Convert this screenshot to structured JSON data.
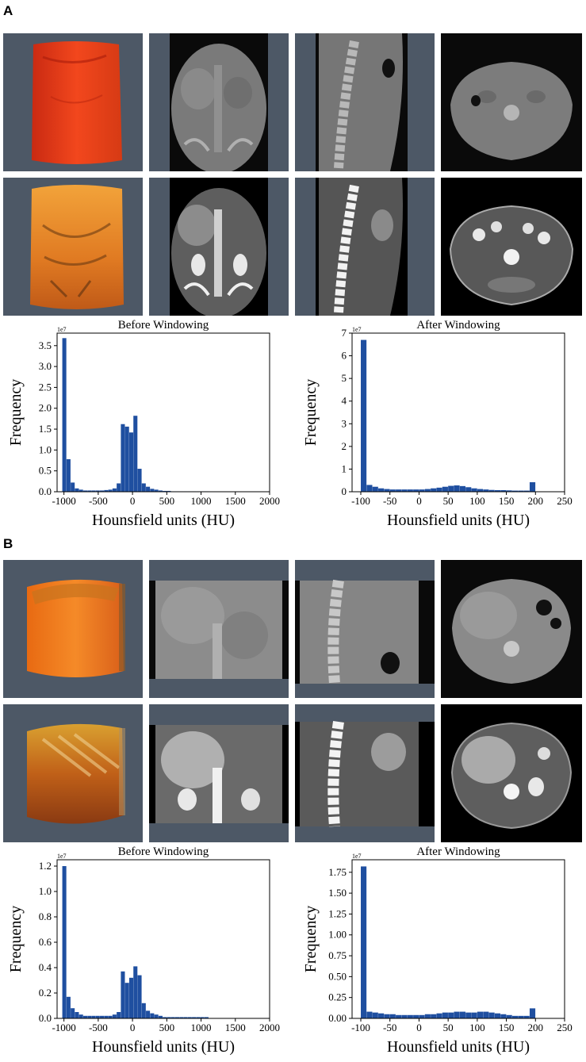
{
  "panels": [
    {
      "letter": "A"
    },
    {
      "letter": "B"
    }
  ],
  "colors": {
    "bar": "#1f4fa0",
    "slate_background": "#4d5866",
    "volume_red": "#e8401e",
    "volume_orange": "#e07a22"
  },
  "chart_data": [
    {
      "panel": "A",
      "type": "bar",
      "title": "Before Windowing",
      "xlabel": "Hounsfield units (HU)",
      "ylabel": "Frequency",
      "scale_label": "1e7",
      "xlim": [
        -1100,
        2000
      ],
      "ylim": [
        0,
        3.8
      ],
      "xticks": [
        -1000,
        -500,
        0,
        500,
        1000,
        1500,
        2000
      ],
      "xtick_labels": [
        "-1000",
        "-500",
        "0",
        "500",
        "1000",
        "1500",
        "2000"
      ],
      "yticks": [
        0,
        0.5,
        1.0,
        1.5,
        2.0,
        2.5,
        3.0,
        3.5
      ],
      "ytick_labels": [
        "0.0",
        "0.5",
        "1.0",
        "1.5",
        "2.0",
        "2.5",
        "3.0",
        "3.5"
      ],
      "bin_width": 61,
      "x": [
        -1024,
        -963,
        -902,
        -841,
        -780,
        -719,
        -658,
        -597,
        -536,
        -475,
        -414,
        -353,
        -292,
        -231,
        -170,
        -109,
        -48,
        13,
        74,
        135,
        196,
        257,
        318,
        379,
        440,
        501,
        562,
        623,
        684,
        745,
        806,
        867,
        928,
        989,
        1050
      ],
      "values": [
        3.68,
        0.78,
        0.22,
        0.08,
        0.05,
        0.03,
        0.03,
        0.03,
        0.03,
        0.03,
        0.04,
        0.05,
        0.08,
        0.2,
        1.62,
        1.56,
        1.42,
        1.82,
        0.55,
        0.2,
        0.12,
        0.07,
        0.05,
        0.03,
        0.02,
        0.02,
        0.01,
        0.01,
        0.01,
        0.01,
        0.01,
        0.01,
        0.01,
        0.01,
        0.01
      ]
    },
    {
      "panel": "A",
      "type": "bar",
      "title": "After Windowing",
      "xlabel": "Hounsfield units (HU)",
      "ylabel": "Frequency",
      "scale_label": "1e7",
      "xlim": [
        -115,
        250
      ],
      "ylim": [
        0,
        7
      ],
      "xticks": [
        -100,
        -50,
        0,
        50,
        100,
        150,
        200,
        250
      ],
      "xtick_labels": [
        "-100",
        "-50",
        "0",
        "50",
        "100",
        "150",
        "200",
        "250"
      ],
      "yticks": [
        0,
        1,
        2,
        3,
        4,
        5,
        6,
        7
      ],
      "ytick_labels": [
        "0",
        "1",
        "2",
        "3",
        "4",
        "5",
        "6",
        "7"
      ],
      "bin_width": 10,
      "x": [
        -100,
        -90,
        -80,
        -70,
        -60,
        -50,
        -40,
        -30,
        -20,
        -10,
        0,
        10,
        20,
        30,
        40,
        50,
        60,
        70,
        80,
        90,
        100,
        110,
        120,
        130,
        140,
        150,
        160,
        170,
        180,
        190,
        200
      ],
      "values": [
        6.7,
        0.3,
        0.22,
        0.15,
        0.12,
        0.1,
        0.1,
        0.1,
        0.1,
        0.1,
        0.1,
        0.12,
        0.15,
        0.18,
        0.22,
        0.26,
        0.28,
        0.25,
        0.2,
        0.15,
        0.12,
        0.1,
        0.08,
        0.07,
        0.07,
        0.06,
        0.05,
        0.05,
        0.05,
        0.42,
        0
      ]
    },
    {
      "panel": "B",
      "type": "bar",
      "title": "Before Windowing",
      "xlabel": "Hounsfield units (HU)",
      "ylabel": "Frequency",
      "scale_label": "1e7",
      "xlim": [
        -1100,
        2000
      ],
      "ylim": [
        0,
        1.25
      ],
      "xticks": [
        -1000,
        -500,
        0,
        500,
        1000,
        1500,
        2000
      ],
      "xtick_labels": [
        "-1000",
        "-500",
        "0",
        "500",
        "1000",
        "1500",
        "2000"
      ],
      "yticks": [
        0,
        0.2,
        0.4,
        0.6,
        0.8,
        1.0,
        1.2
      ],
      "ytick_labels": [
        "0.0",
        "0.2",
        "0.4",
        "0.6",
        "0.8",
        "1.0",
        "1.2"
      ],
      "bin_width": 61,
      "x": [
        -1024,
        -963,
        -902,
        -841,
        -780,
        -719,
        -658,
        -597,
        -536,
        -475,
        -414,
        -353,
        -292,
        -231,
        -170,
        -109,
        -48,
        13,
        74,
        135,
        196,
        257,
        318,
        379,
        440,
        501,
        562,
        623,
        684,
        745,
        806,
        867,
        928,
        989,
        1050
      ],
      "values": [
        1.2,
        0.17,
        0.08,
        0.05,
        0.03,
        0.02,
        0.02,
        0.02,
        0.02,
        0.02,
        0.02,
        0.02,
        0.03,
        0.05,
        0.37,
        0.28,
        0.32,
        0.41,
        0.34,
        0.12,
        0.06,
        0.04,
        0.03,
        0.02,
        0.01,
        0.01,
        0.01,
        0.01,
        0.01,
        0.01,
        0.01,
        0.01,
        0.01,
        0.01,
        0.01
      ]
    },
    {
      "panel": "B",
      "type": "bar",
      "title": "After Windowing",
      "xlabel": "Hounsfield units (HU)",
      "ylabel": "Frequency",
      "scale_label": "1e7",
      "xlim": [
        -115,
        250
      ],
      "ylim": [
        0,
        1.9
      ],
      "xticks": [
        -100,
        -50,
        0,
        50,
        100,
        150,
        200,
        250
      ],
      "xtick_labels": [
        "-100",
        "-50",
        "0",
        "50",
        "100",
        "150",
        "200",
        "250"
      ],
      "yticks": [
        0,
        0.25,
        0.5,
        0.75,
        1.0,
        1.25,
        1.5,
        1.75
      ],
      "ytick_labels": [
        "0.00",
        "0.25",
        "0.50",
        "0.75",
        "1.00",
        "1.25",
        "1.50",
        "1.75"
      ],
      "bin_width": 10,
      "x": [
        -100,
        -90,
        -80,
        -70,
        -60,
        -50,
        -40,
        -30,
        -20,
        -10,
        0,
        10,
        20,
        30,
        40,
        50,
        60,
        70,
        80,
        90,
        100,
        110,
        120,
        130,
        140,
        150,
        160,
        170,
        180,
        190,
        200
      ],
      "values": [
        1.82,
        0.08,
        0.07,
        0.06,
        0.05,
        0.05,
        0.04,
        0.04,
        0.04,
        0.04,
        0.04,
        0.05,
        0.05,
        0.06,
        0.07,
        0.07,
        0.08,
        0.08,
        0.07,
        0.07,
        0.08,
        0.08,
        0.07,
        0.06,
        0.05,
        0.04,
        0.03,
        0.03,
        0.03,
        0.12,
        0
      ]
    }
  ]
}
